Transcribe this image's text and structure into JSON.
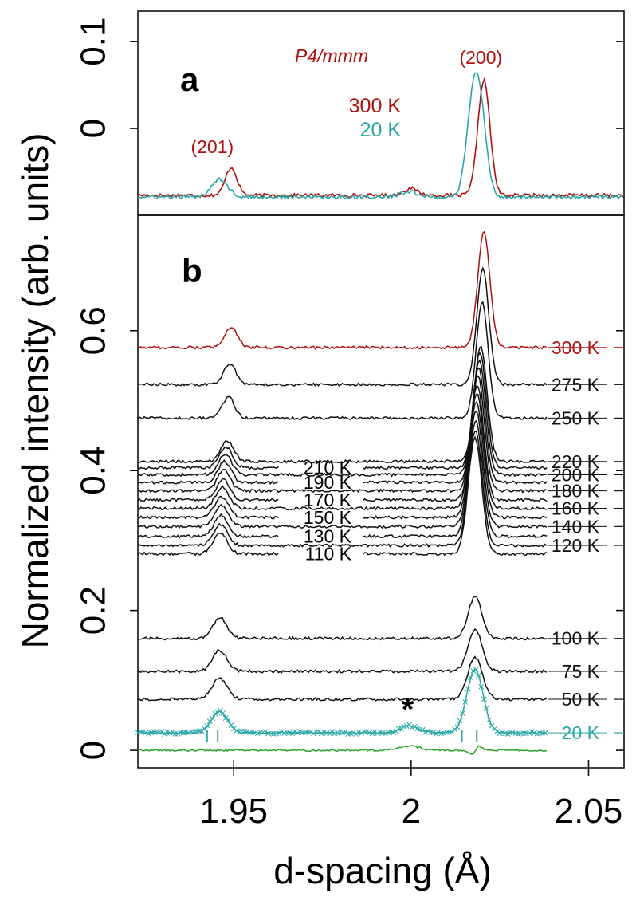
{
  "chart_data": [
    {
      "panel": "a",
      "type": "line",
      "panel_label": "a",
      "phase_label": "P4/mmm",
      "peak_labels": [
        {
          "text": "(201)",
          "x": 1.948
        },
        {
          "text": "(200)",
          "x": 2.021
        }
      ],
      "ylabel": "",
      "ylim": [
        -0.1,
        0.135
      ],
      "yticks": [
        {
          "value": 0,
          "label": "0"
        },
        {
          "value": 0.1,
          "label": "0.1"
        }
      ],
      "series": [
        {
          "name": "300 K",
          "color": "#b01010",
          "baseline": -0.077,
          "peaks": [
            {
              "center": 1.9493,
              "height": 0.032,
              "width": 0.0016
            },
            {
              "center": 1.9998,
              "height": 0.008,
              "width": 0.002
            },
            {
              "center": 2.0205,
              "height": 0.133,
              "width": 0.0017
            }
          ]
        },
        {
          "name": "20 K",
          "color": "#2aa7a7",
          "baseline": -0.079,
          "peaks": [
            {
              "center": 1.946,
              "height": 0.021,
              "width": 0.0023
            },
            {
              "center": 1.9995,
              "height": 0.006,
              "width": 0.0025
            },
            {
              "center": 2.0172,
              "height": 0.088,
              "width": 0.0018
            },
            {
              "center": 2.0195,
              "height": 0.088,
              "width": 0.0018
            }
          ]
        }
      ]
    },
    {
      "panel": "b",
      "type": "line",
      "panel_label": "b",
      "xlabel": "d-spacing (Å)",
      "ylabel": "Normalized intensity (arb. units)",
      "xlim": [
        1.923,
        2.06
      ],
      "ylim": [
        -0.025,
        0.765
      ],
      "xticks": [
        {
          "value": 1.95,
          "label": "1.95"
        },
        {
          "value": 2.0,
          "label": "2"
        },
        {
          "value": 2.05,
          "label": "2.05"
        }
      ],
      "yticks": [
        {
          "value": 0,
          "label": "0"
        },
        {
          "value": 0.2,
          "label": "0.2"
        },
        {
          "value": 0.4,
          "label": "0.4"
        },
        {
          "value": 0.6,
          "label": "0.6"
        }
      ],
      "series": [
        {
          "name": "300 K",
          "baseline": 0.576,
          "color": "#b01010",
          "labelside": "right",
          "peaks": [
            {
              "center": 1.9493,
              "height": 0.03,
              "width": 0.0017
            },
            {
              "center": 2.0205,
              "height": 0.165,
              "width": 0.0017
            }
          ]
        },
        {
          "name": "275 K",
          "baseline": 0.523,
          "color": "#111111",
          "labelside": "right",
          "peaks": [
            {
              "center": 1.9489,
              "height": 0.03,
              "width": 0.0017
            },
            {
              "center": 2.0202,
              "height": 0.165,
              "width": 0.0017
            }
          ]
        },
        {
          "name": "250 K",
          "baseline": 0.475,
          "color": "#111111",
          "labelside": "right",
          "peaks": [
            {
              "center": 1.9485,
              "height": 0.03,
              "width": 0.0017
            },
            {
              "center": 2.02,
              "height": 0.165,
              "width": 0.0017
            }
          ]
        },
        {
          "name": "220 K",
          "baseline": 0.413,
          "color": "#111111",
          "labelside": "right",
          "peaks": [
            {
              "center": 1.9481,
              "height": 0.03,
              "width": 0.0018
            },
            {
              "center": 2.0196,
              "height": 0.165,
              "width": 0.0018
            }
          ]
        },
        {
          "name": "210 K",
          "baseline": 0.404,
          "color": "#111111",
          "labelside": "left",
          "peaks": [
            {
              "center": 1.9478,
              "height": 0.03,
              "width": 0.0018
            },
            {
              "center": 2.0194,
              "height": 0.165,
              "width": 0.0018
            }
          ]
        },
        {
          "name": "200 K",
          "baseline": 0.394,
          "color": "#111111",
          "labelside": "right",
          "peaks": [
            {
              "center": 1.9476,
              "height": 0.03,
              "width": 0.0018
            },
            {
              "center": 2.0192,
              "height": 0.165,
              "width": 0.0018
            }
          ]
        },
        {
          "name": "190 K",
          "baseline": 0.383,
          "color": "#111111",
          "labelside": "left",
          "peaks": [
            {
              "center": 1.9474,
              "height": 0.03,
              "width": 0.0018
            },
            {
              "center": 2.019,
              "height": 0.165,
              "width": 0.0018
            }
          ]
        },
        {
          "name": "180 K",
          "baseline": 0.371,
          "color": "#111111",
          "labelside": "right",
          "peaks": [
            {
              "center": 1.9472,
              "height": 0.03,
              "width": 0.0018
            },
            {
              "center": 2.0188,
              "height": 0.165,
              "width": 0.0018
            }
          ]
        },
        {
          "name": "170 K",
          "baseline": 0.358,
          "color": "#111111",
          "labelside": "left",
          "peaks": [
            {
              "center": 1.947,
              "height": 0.03,
              "width": 0.0018
            },
            {
              "center": 2.0186,
              "height": 0.165,
              "width": 0.0018
            }
          ]
        },
        {
          "name": "160 K",
          "baseline": 0.346,
          "color": "#111111",
          "labelside": "right",
          "peaks": [
            {
              "center": 1.9468,
              "height": 0.03,
              "width": 0.0019
            },
            {
              "center": 2.0185,
              "height": 0.165,
              "width": 0.0019
            }
          ]
        },
        {
          "name": "150 K",
          "baseline": 0.333,
          "color": "#111111",
          "labelside": "left",
          "peaks": [
            {
              "center": 1.9466,
              "height": 0.03,
              "width": 0.0019
            },
            {
              "center": 2.0184,
              "height": 0.165,
              "width": 0.0019
            }
          ]
        },
        {
          "name": "140 K",
          "baseline": 0.32,
          "color": "#111111",
          "labelside": "right",
          "peaks": [
            {
              "center": 1.9465,
              "height": 0.03,
              "width": 0.0019
            },
            {
              "center": 2.0183,
              "height": 0.165,
              "width": 0.0019
            }
          ]
        },
        {
          "name": "130 K",
          "baseline": 0.306,
          "color": "#111111",
          "labelside": "left",
          "peaks": [
            {
              "center": 1.9464,
              "height": 0.03,
              "width": 0.0019
            },
            {
              "center": 2.0182,
              "height": 0.165,
              "width": 0.0019
            }
          ]
        },
        {
          "name": "120 K",
          "baseline": 0.293,
          "color": "#111111",
          "labelside": "right",
          "peaks": [
            {
              "center": 1.9463,
              "height": 0.03,
              "width": 0.0019
            },
            {
              "center": 2.0181,
              "height": 0.165,
              "width": 0.0019
            }
          ]
        },
        {
          "name": "110 K",
          "baseline": 0.281,
          "color": "#111111",
          "labelside": "left",
          "peaks": [
            {
              "center": 1.9462,
              "height": 0.03,
              "width": 0.0019
            },
            {
              "center": 2.018,
              "height": 0.165,
              "width": 0.0019
            }
          ]
        },
        {
          "name": "100 K",
          "baseline": 0.16,
          "color": "#111111",
          "labelside": "right",
          "peaks": [
            {
              "center": 1.9461,
              "height": 0.03,
              "width": 0.0019
            },
            {
              "center": 2.018,
              "height": 0.06,
              "width": 0.0019
            }
          ]
        },
        {
          "name": "75 K",
          "baseline": 0.113,
          "color": "#111111",
          "labelside": "right",
          "peaks": [
            {
              "center": 1.946,
              "height": 0.03,
              "width": 0.002
            },
            {
              "center": 2.018,
              "height": 0.06,
              "width": 0.002
            }
          ]
        },
        {
          "name": "50 K",
          "baseline": 0.073,
          "color": "#111111",
          "labelside": "right",
          "peaks": [
            {
              "center": 1.946,
              "height": 0.03,
              "width": 0.0021
            },
            {
              "center": 2.018,
              "height": 0.06,
              "width": 0.0021
            }
          ]
        },
        {
          "name": "20 K",
          "baseline": 0.025,
          "color": "#2aa7a7",
          "labelside": "right",
          "peaks": [
            {
              "center": 1.946,
              "height": 0.03,
              "width": 0.0023
            },
            {
              "center": 1.9995,
              "height": 0.01,
              "width": 0.0025
            },
            {
              "center": 2.018,
              "height": 0.09,
              "width": 0.0023
            }
          ]
        }
      ],
      "fit_series": {
        "series": "20 K",
        "color": "#2aa7a7"
      },
      "difference_curve": {
        "baseline": 0.0,
        "color": "#2aa02a"
      },
      "reflection_ticks": [
        1.9425,
        1.9455,
        2.0143,
        2.0185
      ],
      "impurity_marker": {
        "text": "*",
        "x": 1.9995
      }
    }
  ]
}
